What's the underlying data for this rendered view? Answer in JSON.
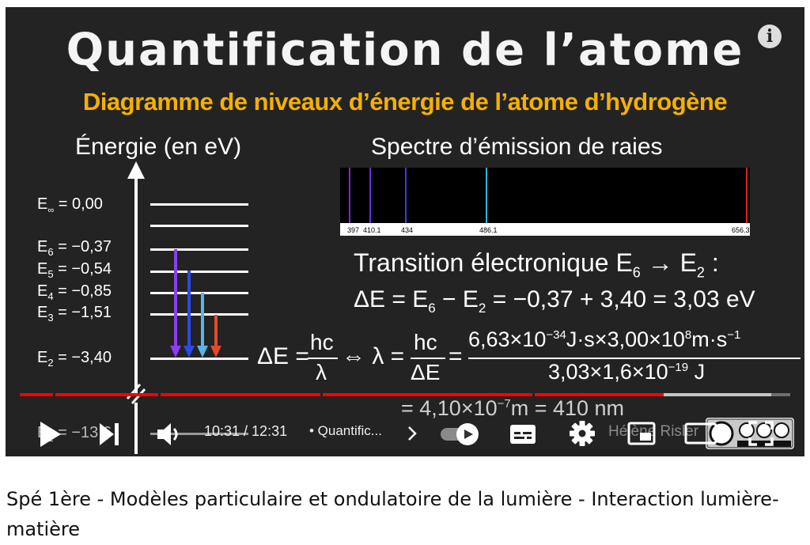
{
  "slide": {
    "title": "Quantification de l’atome",
    "subtitle": "Diagramme de niveaux d’énergie de l’atome d’hydrogène",
    "energy_axis_title": "Énergie (en eV)",
    "spectrum_title": "Spectre d’émission de raies",
    "spectrum_ticks": [
      "397",
      "410.1",
      "434",
      "486.1",
      "656.3"
    ],
    "levels": [
      {
        "name": "E",
        "sub": "∞",
        "value": "= 0,00"
      },
      {
        "name": "E",
        "sub": "6",
        "value": "= −0,37"
      },
      {
        "name": "E",
        "sub": "5",
        "value": "= −0,54"
      },
      {
        "name": "E",
        "sub": "4",
        "value": "= −0,85"
      },
      {
        "name": "E",
        "sub": "3",
        "value": "= −1,51"
      },
      {
        "name": "E",
        "sub": "2",
        "value": "= −3,40"
      },
      {
        "name": "E",
        "sub": "1",
        "value": "= −13,6"
      }
    ],
    "transition_label": "Transition électronique E",
    "delta_e_line": "ΔE = E",
    "delta_e_result": "= −0,37 + 3,40 = 3,03 eV",
    "formula_lhs": "ΔE =",
    "formula_hc": "hc",
    "formula_lambda": "λ",
    "formula_equiv": "⇔ λ =",
    "formula_de": "ΔE",
    "formula_eq": "=",
    "formula_num": "6,63×10",
    "formula_num_exp": "−34",
    "formula_num_rest": "J·s×3,00×10",
    "formula_num_exp2": "8",
    "formula_num_rest2": "m·s",
    "formula_num_exp3": "−1",
    "formula_den": "3,03×1,6×10",
    "formula_den_exp": "−19",
    "formula_den_rest": "J",
    "result": "= 4,10×10",
    "result_exp": "−7",
    "result_rest": "m = 410 nm"
  },
  "player": {
    "time": "10:31 / 12:31",
    "chapter": "• Quantific...",
    "watermark": "Hélène Risler",
    "progress_played": 0.836,
    "progress_buffered": 0.975
  },
  "video_title": "Spé 1ère - Modèles particulaire et ondulatoire de la lumière - Interaction lumière-matière",
  "colors": {
    "accent": "#f5b000",
    "progress": "#ff0000"
  }
}
